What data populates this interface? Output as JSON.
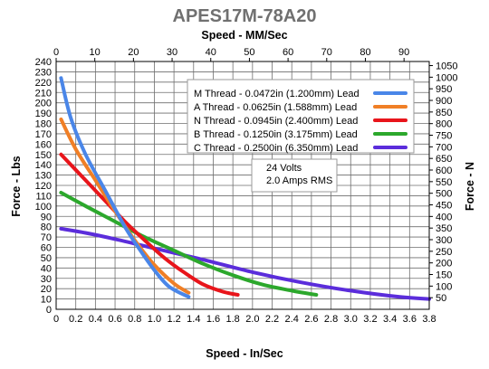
{
  "chart_data": {
    "type": "line",
    "title": "APES17M-78A20",
    "xlabel": "Speed - In/Sec",
    "x2label": "Speed - MM/Sec",
    "ylabel": "Force - Lbs",
    "y2label": "Force - N",
    "xlim": [
      0,
      3.8
    ],
    "ylim": [
      0,
      240
    ],
    "x2lim": [
      0,
      96.52
    ],
    "y2lim": [
      0,
      1067.6
    ],
    "xticks": [
      "0",
      "0.2",
      "0.4",
      "0.6",
      "0.8",
      "1.0",
      "1.2",
      "1.4",
      "1.6",
      "1.8",
      "2.0",
      "2.2",
      "2.4",
      "2.6",
      "2.8",
      "3.0",
      "3.2",
      "3.4",
      "3.6",
      "3.8"
    ],
    "x2ticks": [
      "0",
      "10",
      "20",
      "30",
      "40",
      "50",
      "60",
      "70",
      "80",
      "90"
    ],
    "yticks": [
      "0",
      "10",
      "20",
      "30",
      "40",
      "50",
      "60",
      "70",
      "80",
      "90",
      "100",
      "110",
      "120",
      "130",
      "140",
      "150",
      "160",
      "170",
      "180",
      "190",
      "200",
      "210",
      "220",
      "230",
      "240"
    ],
    "y2ticks": [
      "50",
      "100",
      "150",
      "200",
      "250",
      "300",
      "350",
      "400",
      "450",
      "500",
      "550",
      "600",
      "650",
      "700",
      "750",
      "800",
      "850",
      "900",
      "950",
      "1000",
      "1050"
    ],
    "grid": true,
    "legend_position": "top-right",
    "series": [
      {
        "name": "M Thread - 0.0472in (1.200mm) Lead",
        "color": "#4a86e8",
        "x": [
          0.05,
          0.15,
          0.3,
          0.5,
          0.7,
          0.85,
          1.0,
          1.15,
          1.35
        ],
        "y": [
          224,
          185,
          150,
          115,
          80,
          58,
          38,
          22,
          12
        ]
      },
      {
        "name": "A Thread - 0.0625in (1.588mm) Lead",
        "color": "#f07f26",
        "x": [
          0.05,
          0.2,
          0.4,
          0.6,
          0.8,
          1.0,
          1.2,
          1.35
        ],
        "y": [
          184,
          155,
          125,
          95,
          67,
          43,
          25,
          16
        ]
      },
      {
        "name": "N Thread - 0.0945in (2.400mm) Lead",
        "color": "#e8151b",
        "x": [
          0.05,
          0.3,
          0.5,
          0.7,
          0.9,
          1.1,
          1.3,
          1.5,
          1.7,
          1.85
        ],
        "y": [
          150,
          125,
          105,
          85,
          67,
          50,
          36,
          24,
          17,
          14
        ]
      },
      {
        "name": "B Thread - 0.1250in (3.175mm) Lead",
        "color": "#2ca82c",
        "x": [
          0.05,
          0.3,
          0.6,
          0.9,
          1.2,
          1.5,
          1.8,
          2.1,
          2.4,
          2.65
        ],
        "y": [
          113,
          100,
          85,
          70,
          57,
          44,
          33,
          24,
          18,
          14
        ]
      },
      {
        "name": "C Thread - 0.2500in (6.350mm) Lead",
        "color": "#5b2ddb",
        "x": [
          0.05,
          0.3,
          0.6,
          1.0,
          1.5,
          2.0,
          2.5,
          3.0,
          3.5,
          3.8
        ],
        "y": [
          78,
          74,
          68,
          59,
          48,
          36,
          26,
          18,
          12,
          10
        ]
      }
    ],
    "annotation": [
      "24 Volts",
      "2.0 Amps RMS"
    ]
  }
}
